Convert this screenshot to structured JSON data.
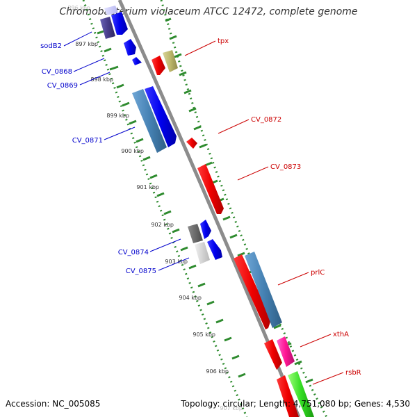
{
  "title": "Chromobacterium violaceum ATCC 12472, complete genome",
  "footer": {
    "accession": "Accession: NC_005085",
    "topology": "Topology: circular; Length: 4,751,080 bp; Genes: 4,530"
  },
  "colors": {
    "forward_label": "#0000cc",
    "reverse_label": "#cc0000",
    "tick": "#2e8b2e",
    "backbone": "#8c8c8c"
  },
  "kbp_ticks": [
    "896 kbp",
    "897 kbp",
    "898 kbp",
    "899 kbp",
    "900 kbp",
    "901 kbp",
    "902 kbp",
    "903 kbp",
    "904 kbp",
    "905 kbp",
    "906 kbp",
    "907 kbp"
  ],
  "forward_gene_labels": [
    "sodB2",
    "CV_0868",
    "CV_0869",
    "CV_0871",
    "CV_0874",
    "CV_0875"
  ],
  "reverse_gene_labels": [
    "tpx",
    "CV_0872",
    "CV_0873",
    "prlC",
    "xthA",
    "rsbR"
  ]
}
